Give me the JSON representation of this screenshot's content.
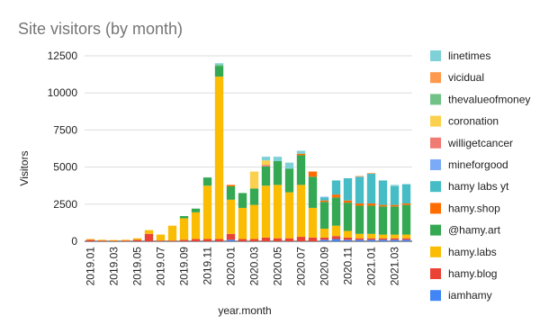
{
  "chart_data": {
    "type": "stacked_bar",
    "title": "Site visitors (by month)",
    "x_label": "year.month",
    "y_label": "Visitors",
    "categories": [
      "2019.01",
      null,
      "2019.03",
      null,
      "2019.05",
      null,
      "2019.07",
      null,
      "2019.09",
      null,
      "2019.11",
      null,
      "2020.01",
      null,
      "2020.03",
      null,
      "2020.05",
      null,
      "2020.07",
      null,
      "2020.09",
      null,
      "2020.11",
      null,
      "2021.01",
      null,
      "2021.03",
      null
    ],
    "ylim": [
      0,
      12500
    ],
    "yticks": [
      0,
      2500,
      5000,
      7500,
      10000,
      12500
    ],
    "grid": true,
    "series": [
      {
        "name": "iamhamy",
        "color": "#4285f4",
        "values": [
          0,
          0,
          0,
          0,
          0,
          0,
          0,
          0,
          0,
          0,
          0,
          0,
          100,
          0,
          0,
          0,
          0,
          0,
          0,
          0,
          100,
          150,
          100,
          100,
          100,
          100,
          100,
          100
        ]
      },
      {
        "name": "hamy.blog",
        "color": "#ea4335",
        "values": [
          100,
          50,
          30,
          50,
          100,
          500,
          50,
          50,
          100,
          150,
          150,
          150,
          400,
          150,
          150,
          250,
          200,
          200,
          300,
          250,
          150,
          200,
          150,
          100,
          100,
          100,
          100,
          100
        ]
      },
      {
        "name": "hamy.labs",
        "color": "#fbbc04",
        "values": [
          50,
          50,
          50,
          50,
          100,
          250,
          400,
          1000,
          1450,
          1800,
          3600,
          10950,
          2300,
          2100,
          2300,
          3500,
          3600,
          3100,
          3500,
          2000,
          600,
          700,
          450,
          300,
          300,
          250,
          250,
          250
        ]
      },
      {
        "name": "@hamy.art",
        "color": "#34a853",
        "values": [
          0,
          0,
          0,
          0,
          0,
          0,
          0,
          0,
          150,
          250,
          550,
          700,
          900,
          1000,
          1100,
          1300,
          1600,
          1600,
          2000,
          2100,
          1800,
          1900,
          1900,
          1900,
          1900,
          1900,
          1900,
          2000
        ]
      },
      {
        "name": "hamy.shop",
        "color": "#ff6d01",
        "values": [
          0,
          0,
          0,
          0,
          0,
          0,
          0,
          0,
          0,
          0,
          0,
          0,
          100,
          0,
          0,
          0,
          0,
          0,
          100,
          350,
          100,
          200,
          150,
          150,
          150,
          100,
          100,
          100
        ]
      },
      {
        "name": "hamy labs yt",
        "color": "#46bdc6",
        "values": [
          0,
          0,
          0,
          0,
          0,
          0,
          0,
          0,
          0,
          0,
          0,
          0,
          0,
          0,
          0,
          0,
          0,
          0,
          0,
          0,
          200,
          950,
          1500,
          1800,
          2000,
          1650,
          1250,
          1300
        ]
      },
      {
        "name": "mineforgood",
        "color": "#7baaf7",
        "values": [
          0,
          0,
          0,
          0,
          0,
          0,
          0,
          0,
          0,
          0,
          0,
          0,
          0,
          0,
          0,
          0,
          0,
          0,
          0,
          0,
          50,
          0,
          0,
          0,
          0,
          0,
          0,
          0
        ]
      },
      {
        "name": "willigetcancer",
        "color": "#f07b72",
        "values": [
          0,
          0,
          0,
          0,
          0,
          0,
          0,
          0,
          0,
          0,
          0,
          0,
          0,
          0,
          0,
          100,
          0,
          0,
          0,
          0,
          0,
          0,
          0,
          0,
          0,
          0,
          0,
          0
        ]
      },
      {
        "name": "coronation",
        "color": "#fcd04f",
        "values": [
          0,
          0,
          0,
          0,
          0,
          0,
          0,
          0,
          0,
          0,
          0,
          0,
          0,
          0,
          1150,
          300,
          0,
          0,
          0,
          0,
          0,
          0,
          0,
          0,
          0,
          0,
          0,
          0
        ]
      },
      {
        "name": "thevalueofmoney",
        "color": "#71c287",
        "values": [
          0,
          0,
          0,
          0,
          0,
          0,
          0,
          0,
          0,
          0,
          0,
          100,
          0,
          0,
          0,
          0,
          0,
          0,
          0,
          0,
          0,
          0,
          0,
          0,
          0,
          0,
          0,
          0
        ]
      },
      {
        "name": "vicidual",
        "color": "#ff994d",
        "values": [
          0,
          0,
          0,
          0,
          0,
          0,
          0,
          0,
          0,
          0,
          0,
          0,
          0,
          0,
          0,
          0,
          0,
          0,
          0,
          0,
          0,
          0,
          0,
          50,
          50,
          0,
          0,
          0
        ]
      },
      {
        "name": "linetimes",
        "color": "#7ed1d7",
        "values": [
          0,
          0,
          0,
          0,
          0,
          0,
          0,
          0,
          0,
          0,
          0,
          100,
          0,
          0,
          0,
          250,
          300,
          400,
          200,
          0,
          0,
          0,
          0,
          0,
          0,
          0,
          100,
          0
        ]
      }
    ]
  }
}
